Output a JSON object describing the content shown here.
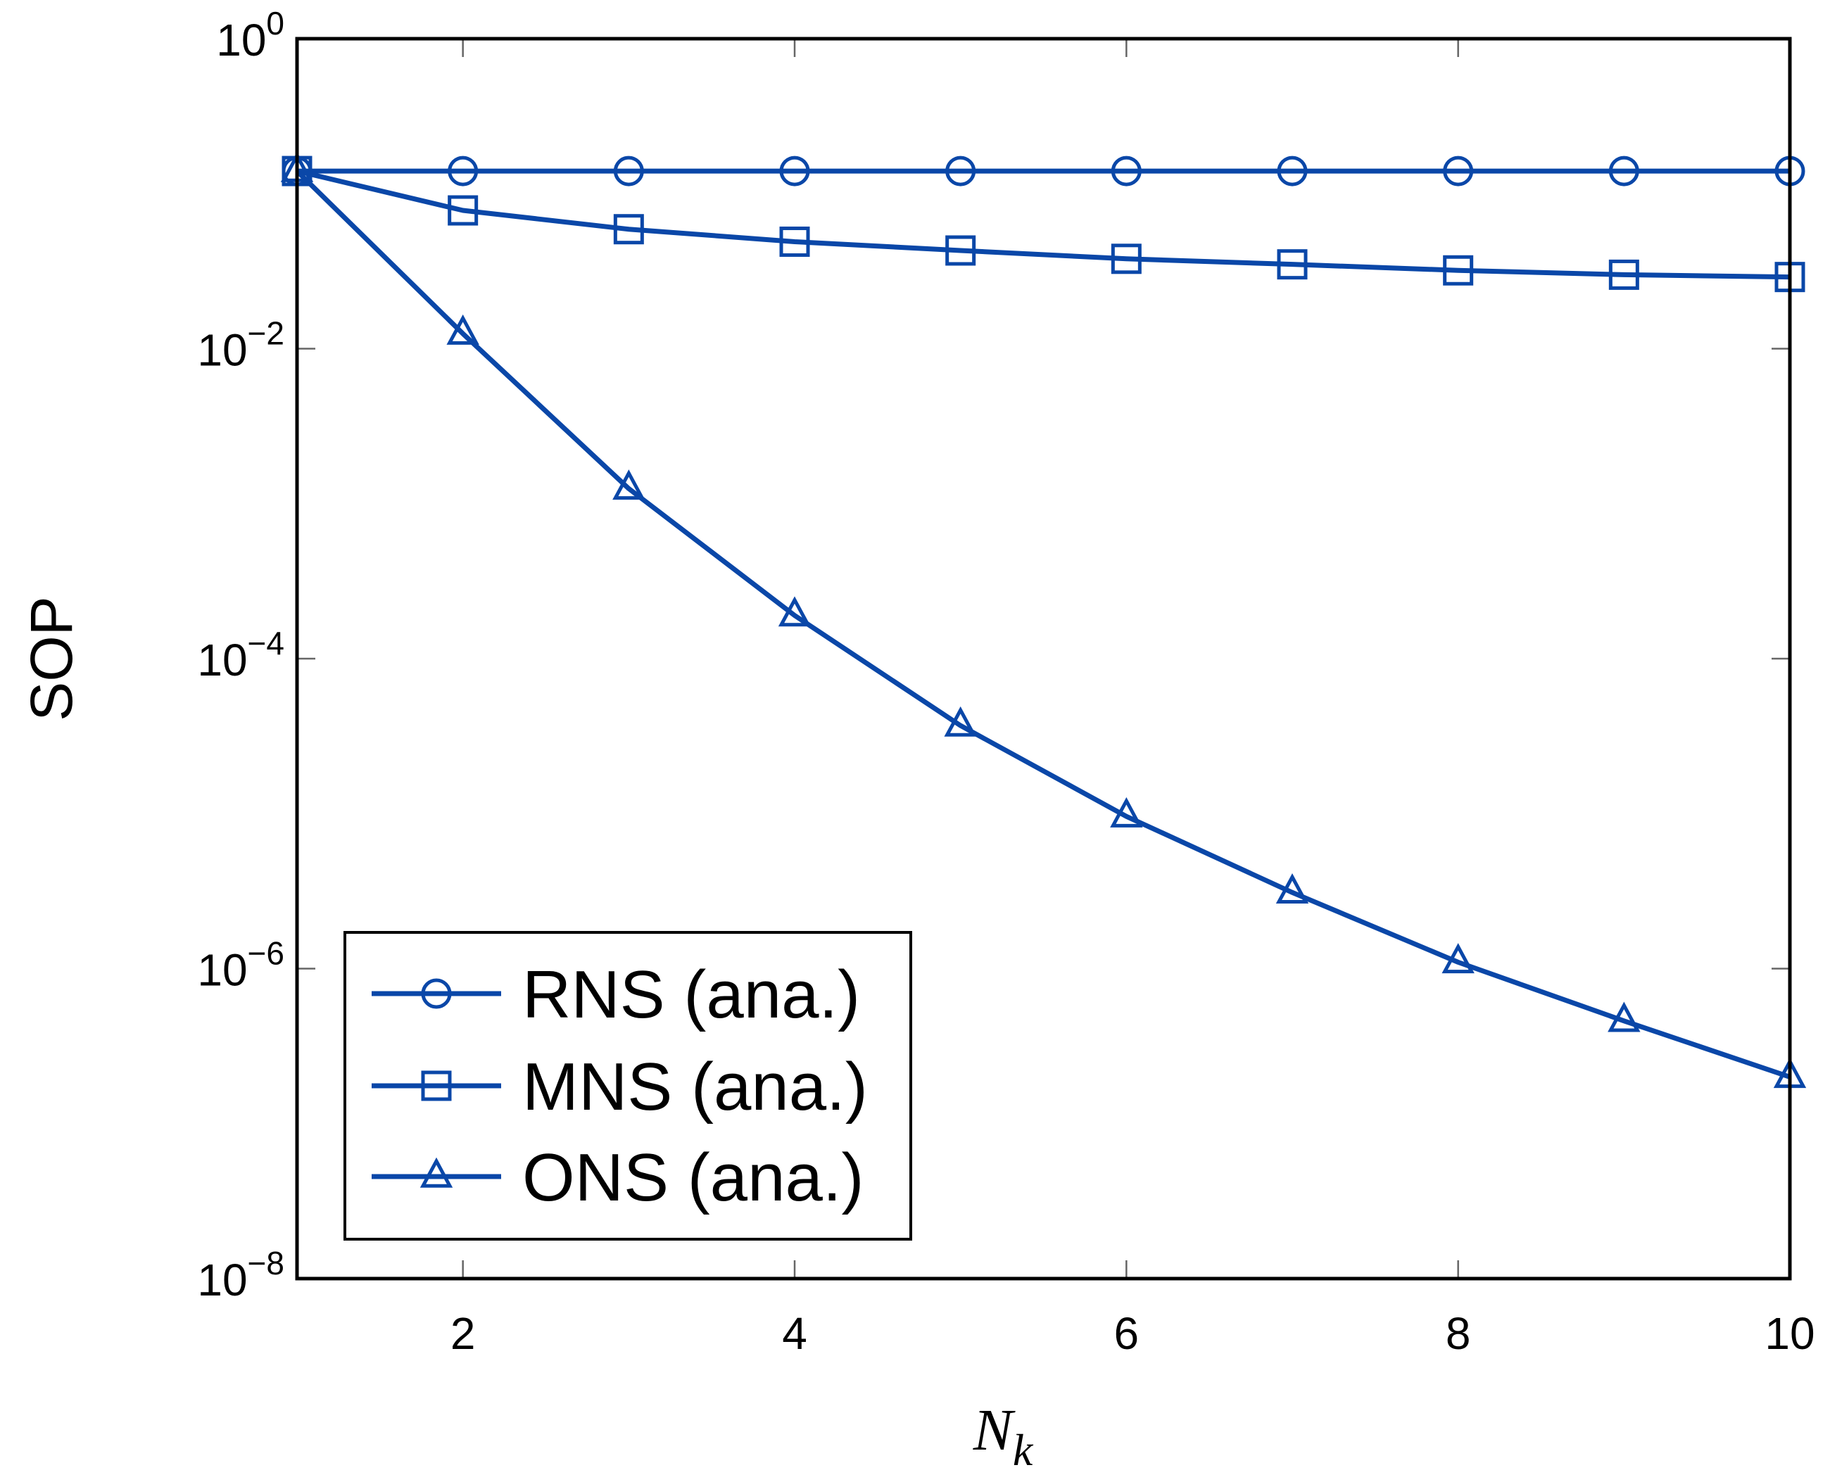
{
  "chart_data": {
    "type": "line",
    "title": "",
    "xlabel": "N",
    "xlabel_subscript": "k",
    "ylabel": "SOP",
    "xlim": [
      1,
      10
    ],
    "ylim_log10": [
      -8,
      0
    ],
    "yscale": "log",
    "x_ticks": [
      2,
      4,
      6,
      8,
      10
    ],
    "y_ticks": [
      {
        "base": "10",
        "exp": "0",
        "log10": 0
      },
      {
        "base": "10",
        "exp": "−2",
        "log10": -2
      },
      {
        "base": "10",
        "exp": "−4",
        "log10": -4
      },
      {
        "base": "10",
        "exp": "−6",
        "log10": -6
      },
      {
        "base": "10",
        "exp": "−8",
        "log10": -8
      }
    ],
    "grid": false,
    "legend_position": "bottom-left",
    "color": "#0a47a8",
    "x": [
      1,
      2,
      3,
      4,
      5,
      6,
      7,
      8,
      9,
      10
    ],
    "series": [
      {
        "name": "RNS (ana.)",
        "marker": "circle",
        "values": [
          0.14,
          0.14,
          0.14,
          0.14,
          0.14,
          0.14,
          0.14,
          0.14,
          0.14,
          0.14
        ]
      },
      {
        "name": "MNS (ana.)",
        "marker": "square",
        "values": [
          0.14,
          0.078,
          0.059,
          0.049,
          0.043,
          0.038,
          0.035,
          0.032,
          0.03,
          0.029
        ]
      },
      {
        "name": "ONS (ana.)",
        "marker": "triangle",
        "values": [
          0.14,
          0.0125,
          0.00125,
          0.00019,
          3.7e-05,
          9.6e-06,
          3.1e-06,
          1.1e-06,
          4.6e-07,
          2e-07
        ]
      }
    ]
  }
}
